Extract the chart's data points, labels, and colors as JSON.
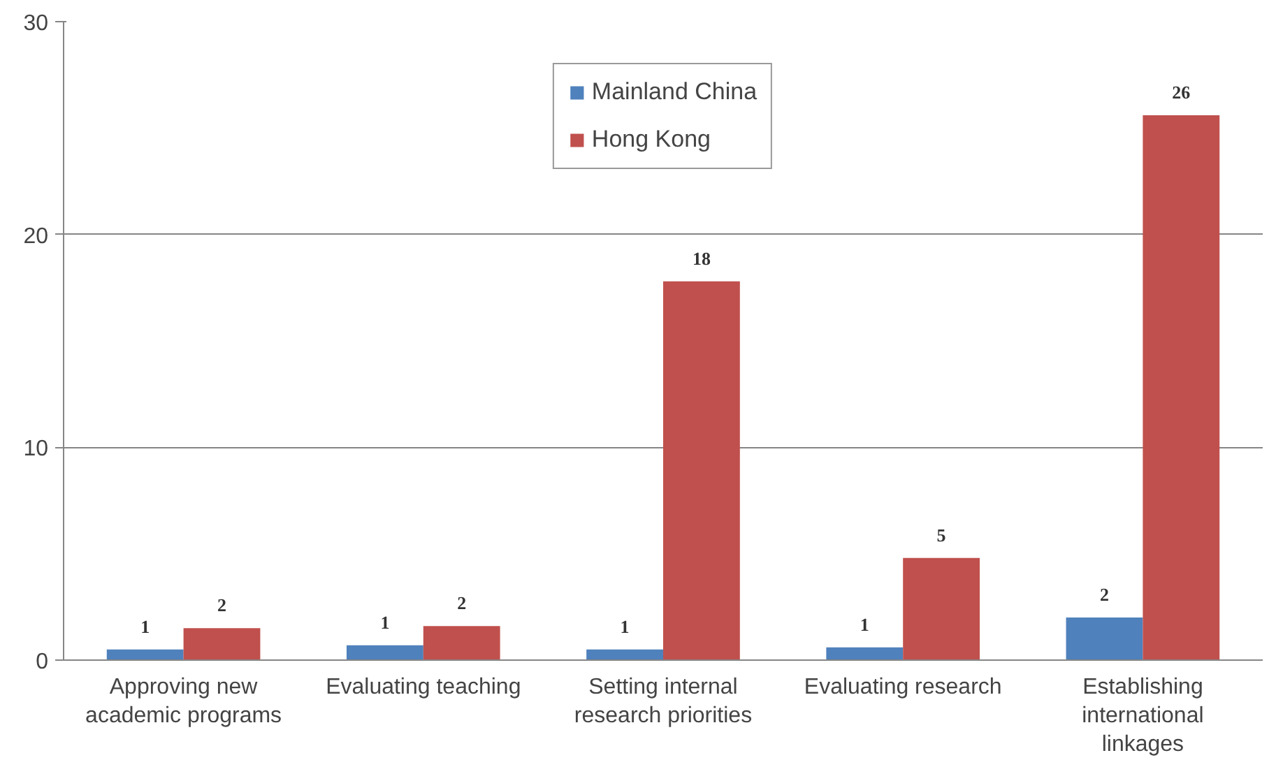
{
  "chart_data": {
    "type": "bar",
    "categories": [
      "Approving new academic programs",
      "Evaluating teaching",
      "Setting internal research priorities",
      "Evaluating research",
      "Establishing international linkages"
    ],
    "series": [
      {
        "name": "Mainland China",
        "color": "#4f81bd",
        "values": [
          0.5,
          0.7,
          0.5,
          0.6,
          2.0
        ],
        "value_labels": [
          "1",
          "1",
          "1",
          "1",
          "2"
        ]
      },
      {
        "name": "Hong Kong",
        "color": "#c0504d",
        "values": [
          1.5,
          1.6,
          17.8,
          4.8,
          25.6
        ],
        "value_labels": [
          "2",
          "2",
          "18",
          "5",
          "26"
        ]
      }
    ],
    "ylim": [
      0,
      30
    ],
    "yticks": [
      0,
      10,
      20,
      30
    ],
    "grid": "y",
    "legend": "top"
  }
}
